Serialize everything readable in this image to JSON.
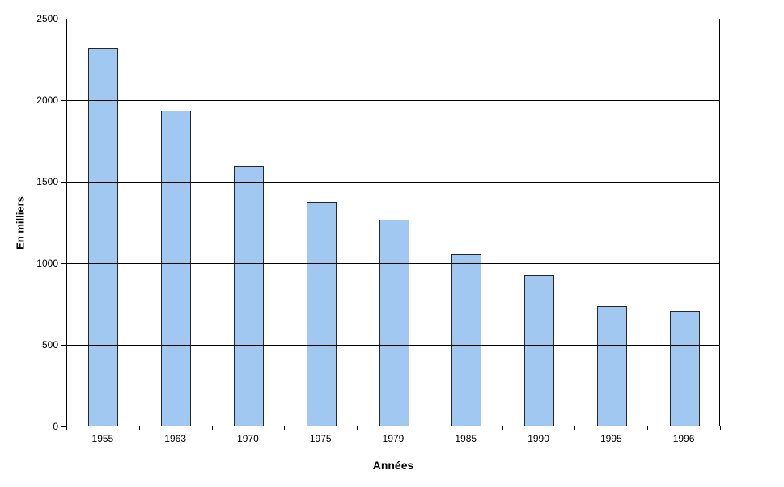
{
  "chart_data": {
    "type": "bar",
    "title": "",
    "categories": [
      "1955",
      "1963",
      "1970",
      "1975",
      "1979",
      "1985",
      "1990",
      "1995",
      "1996"
    ],
    "values": [
      2310,
      1930,
      1590,
      1370,
      1260,
      1050,
      920,
      735,
      705
    ],
    "xlabel": "Années",
    "ylabel": "En milliers",
    "ylim": [
      0,
      2500
    ],
    "yticks": [
      0,
      500,
      1000,
      1500,
      2000,
      2500
    ],
    "grid": "horizontal",
    "legend": "none",
    "colors": {
      "bar_fill": "#a0c8f0",
      "bar_border": "#26262e",
      "axis": "#000000",
      "gridline": "#000000",
      "background": "#ffffff"
    }
  }
}
